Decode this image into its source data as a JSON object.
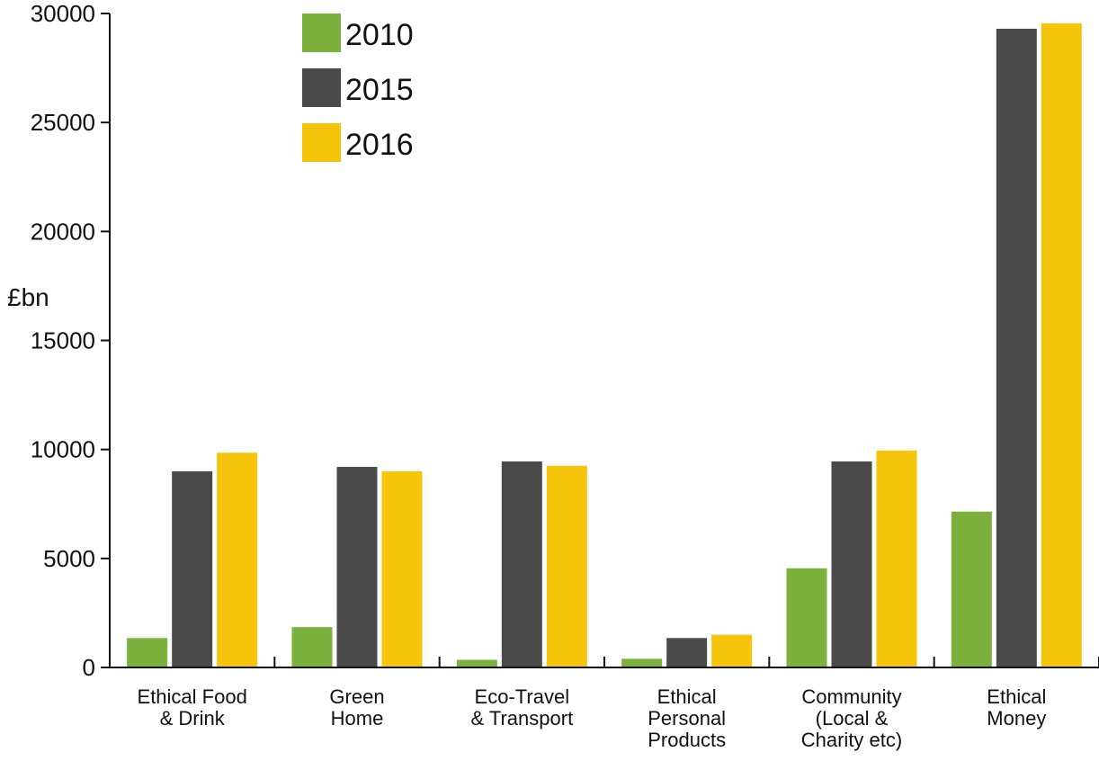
{
  "chart_data": {
    "type": "bar",
    "title": "",
    "ylabel": "£bn",
    "xlabel": "",
    "ylim": [
      0,
      30000
    ],
    "yticks": [
      0,
      5000,
      10000,
      15000,
      20000,
      25000,
      30000
    ],
    "categories": [
      [
        "Ethical Food",
        "& Drink"
      ],
      [
        "Green",
        "Home"
      ],
      [
        "Eco-Travel",
        "& Transport"
      ],
      [
        "Ethical",
        "Personal",
        "Products"
      ],
      [
        "Community",
        "(Local &",
        "Charity etc)"
      ],
      [
        "Ethical",
        "Money"
      ]
    ],
    "series": [
      {
        "name": "2010",
        "color": "#7bb13c",
        "values": [
          1350,
          1850,
          350,
          400,
          4550,
          7150
        ]
      },
      {
        "name": "2015",
        "color": "#4a4a4a",
        "values": [
          9000,
          9200,
          9450,
          1350,
          9450,
          29300
        ]
      },
      {
        "name": "2016",
        "color": "#f6c40a",
        "values": [
          9850,
          9000,
          9250,
          1500,
          9950,
          29550
        ]
      }
    ],
    "legend_position": "top-left",
    "grid": false
  }
}
